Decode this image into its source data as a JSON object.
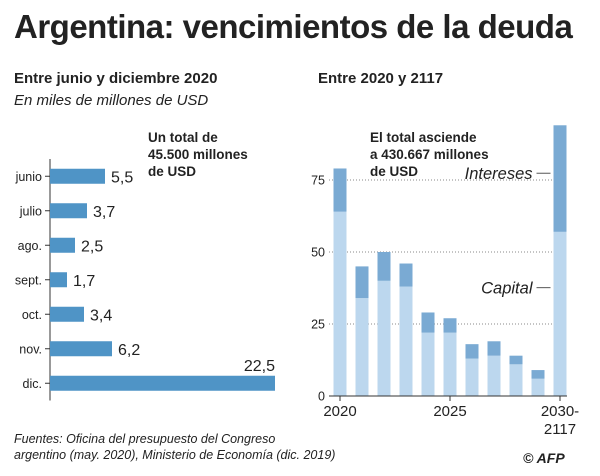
{
  "header": {
    "title": "Argentina: vencimientos de la deuda"
  },
  "left_panel": {
    "subtitle": "Entre junio y diciembre 2020",
    "unit_note": "En miles de millones de USD",
    "annotation": [
      "Un total de",
      "45.500 millones",
      "de USD"
    ]
  },
  "right_panel": {
    "subtitle": "Entre 2020 y 2117",
    "annotation": [
      "El total asciende",
      "a 430.667 millones",
      "de USD"
    ]
  },
  "footer": {
    "lines": [
      "Fuentes: Oficina del presupuesto del Congreso",
      "argentino (may. 2020), Ministerio de Economía (dic. 2019)"
    ],
    "logo": "© AFP"
  },
  "colors": {
    "bar_left": "#4f94c6",
    "interest": "#7aaad3",
    "capital": "#bcd7ee",
    "axis": "#333333",
    "grid": "#888888"
  },
  "chart_data": [
    {
      "type": "bar",
      "orientation": "horizontal",
      "title": "Entre junio y diciembre 2020",
      "ylabel": "En miles de millones de USD",
      "categories": [
        "junio",
        "julio",
        "ago.",
        "sept.",
        "oct.",
        "nov.",
        "dic."
      ],
      "values": [
        5.5,
        3.7,
        2.5,
        1.7,
        3.4,
        6.2,
        22.5
      ],
      "value_labels": [
        "5,5",
        "3,7",
        "2,5",
        "1,7",
        "3,4",
        "6,2",
        "22,5"
      ],
      "xlim": [
        0,
        22.5
      ]
    },
    {
      "type": "bar",
      "stacked": true,
      "title": "Entre 2020 y 2117",
      "categories": [
        "2020",
        "2021",
        "2022",
        "2023",
        "2024",
        "2025",
        "2026",
        "2027",
        "2028",
        "2029",
        "2030-2117"
      ],
      "x_tick_labels": [
        "2020",
        "2025",
        "2030-\n2117"
      ],
      "series": [
        {
          "name": "Capital",
          "values": [
            64,
            34,
            40,
            38,
            22,
            22,
            13,
            14,
            11,
            6,
            57
          ]
        },
        {
          "name": "Intereses",
          "values": [
            15,
            11,
            10,
            8,
            7,
            5,
            5,
            5,
            3,
            3,
            37
          ]
        }
      ],
      "legend": [
        "Intereses",
        "Capital"
      ],
      "yticks": [
        0,
        25,
        50,
        75
      ],
      "ylim": [
        0,
        94
      ]
    }
  ]
}
